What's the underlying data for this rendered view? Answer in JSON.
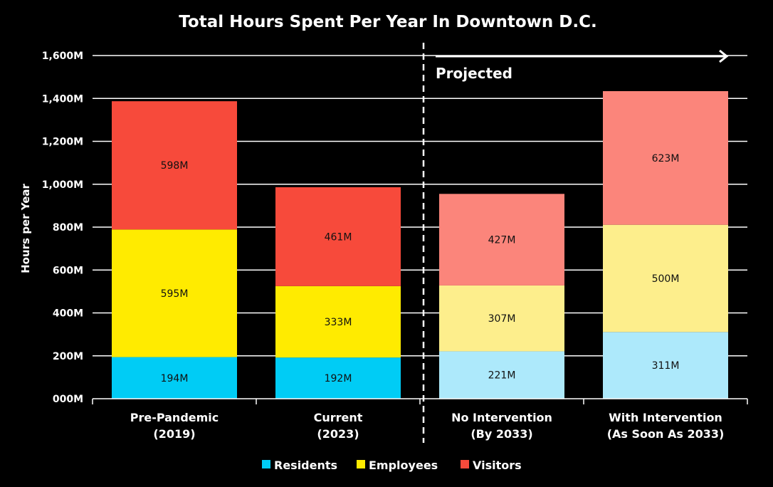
{
  "chart_data": {
    "type": "bar",
    "stacked": true,
    "title": "Total Hours Spent Per Year In Downtown D.C.",
    "ylabel": "Hours per Year",
    "xlabel": "",
    "ylim": [
      0,
      1600
    ],
    "yticks": [
      0,
      200,
      400,
      600,
      800,
      1000,
      1200,
      1400,
      1600
    ],
    "ytick_labels": [
      "000M",
      "200M",
      "400M",
      "600M",
      "800M",
      "1,000M",
      "1,200M",
      "1,400M",
      "1,600M"
    ],
    "grid": true,
    "categories": [
      [
        "Pre-Pandemic",
        "(2019)"
      ],
      [
        "Current",
        "(2023)"
      ],
      [
        "No Intervention",
        "(By 2033)"
      ],
      [
        "With Intervention",
        "(As Soon As 2033)"
      ]
    ],
    "projected_label": "Projected",
    "projected_start_index": 2,
    "series": [
      {
        "name": "Residents",
        "values": [
          194,
          192,
          221,
          311
        ],
        "labels": [
          "194M",
          "192M",
          "221M",
          "311M"
        ],
        "colors": [
          "#00CCF5",
          "#00CCF5",
          "#ADE9FB",
          "#ADE9FB"
        ],
        "legend_color": "#00CCF5"
      },
      {
        "name": "Employees",
        "values": [
          595,
          333,
          307,
          500
        ],
        "labels": [
          "595M",
          "333M",
          "307M",
          "500M"
        ],
        "colors": [
          "#FFEB00",
          "#FFEB00",
          "#FDEE8C",
          "#FDEE8C"
        ],
        "legend_color": "#FFEB00"
      },
      {
        "name": "Visitors",
        "values": [
          598,
          461,
          427,
          623
        ],
        "labels": [
          "598M",
          "461M",
          "427M",
          "623M"
        ],
        "colors": [
          "#F74A3B",
          "#F74A3B",
          "#FB857B",
          "#FB857B"
        ],
        "legend_color": "#F74A3B"
      }
    ]
  }
}
